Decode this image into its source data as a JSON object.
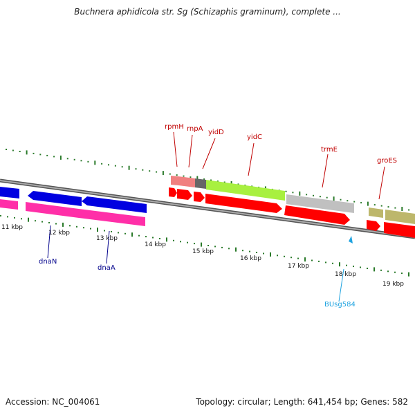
{
  "title": "Buchnera aphidicola str. Sg (Schizaphis graminum), complete ...",
  "footer": {
    "accession": "Accession: NC_004061",
    "summary": "Topology: circular; Length: 641,454 bp; Genes: 582"
  },
  "colors": {
    "axis": "#888888",
    "tick": "#2a7a2a",
    "gene_label_top": "#c00000",
    "gene_label_bottom": "#00008b",
    "highlight_label": "#1fa3e0",
    "blue_arrow": "#0000e0",
    "magenta_bar": "#ff2fa8",
    "red_arrow": "#ff0000"
  },
  "kbp_labels": [
    "11 kbp",
    "12 kbp",
    "13 kbp",
    "14 kbp",
    "15 kbp",
    "16 kbp",
    "17 kbp",
    "18 kbp",
    "19 kbp"
  ],
  "genes_top": [
    {
      "name": "rpmH",
      "color": "#f08080"
    },
    {
      "name": "rnpA",
      "color": "#f08080"
    },
    {
      "name": "yidD",
      "color": "#666666"
    },
    {
      "name": "yidC",
      "color": "#a8f040"
    },
    {
      "name": "trmE",
      "color": "#c0c0c0"
    },
    {
      "name": "groES",
      "color": "#bdb76b"
    }
  ],
  "genes_bottom": [
    {
      "name": "dnaN"
    },
    {
      "name": "dnaA"
    }
  ],
  "highlight": {
    "name": "BUsg584"
  }
}
